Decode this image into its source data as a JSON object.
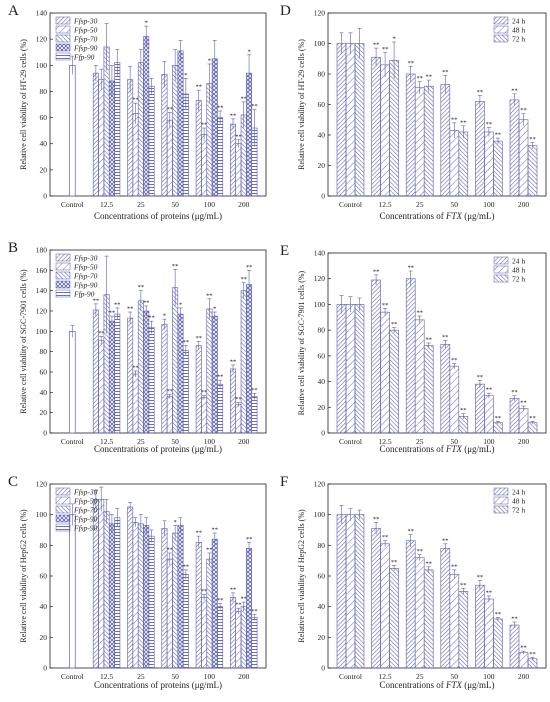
{
  "patterns": [
    "hatch-dense",
    "hatch-sparse",
    "hatch-back",
    "cross",
    "horiz"
  ],
  "colors": {
    "stroke": "#5b5fb0",
    "axis": "#222222",
    "text": "#222222"
  },
  "chart_data": [
    {
      "panel_label": "A",
      "type": "bar",
      "ylabel": "Relative cell viability of HT-29 cells (%)",
      "xlabel": "Concentrations of proteins (μg/mL)",
      "ylim": [
        0,
        140
      ],
      "yticks": [
        0,
        20,
        40,
        60,
        80,
        100,
        120,
        140
      ],
      "control": {
        "label": "Control",
        "value": 100,
        "err": 7
      },
      "categories": [
        "12.5",
        "25",
        "50",
        "100",
        "200"
      ],
      "legend_position": "top-left",
      "series": [
        {
          "name": "Ffsp-30",
          "values": [
            94,
            89,
            93,
            73,
            55
          ],
          "errors": [
            6,
            10,
            10,
            8,
            4
          ],
          "sig": [
            "",
            "",
            "",
            "**",
            "**"
          ]
        },
        {
          "name": "Ffsp-50",
          "values": [
            89,
            63,
            58,
            47,
            40
          ],
          "errors": [
            8,
            8,
            6,
            5,
            3
          ],
          "sig": [
            "",
            "**",
            "**",
            "**",
            "**"
          ]
        },
        {
          "name": "Ffsp-70",
          "values": [
            114,
            102,
            100,
            86,
            62
          ],
          "errors": [
            18,
            10,
            12,
            15,
            10
          ],
          "sig": [
            "",
            "",
            "",
            "*",
            "**"
          ]
        },
        {
          "name": "Ffsp-90",
          "values": [
            88,
            122,
            111,
            105,
            94
          ],
          "errors": [
            12,
            8,
            8,
            14,
            14
          ],
          "sig": [
            "",
            "*",
            "",
            "",
            "*"
          ]
        },
        {
          "name": "Ffp-90",
          "values": [
            102,
            84,
            78,
            60,
            52
          ],
          "errors": [
            10,
            6,
            12,
            5,
            14
          ],
          "sig": [
            "",
            "",
            "*",
            "**",
            "**"
          ]
        }
      ]
    },
    {
      "panel_label": "D",
      "type": "bar",
      "ylabel": "Relative cell viability of HT-29 cells (%)",
      "xlabel_parts": [
        "Concentrations of ",
        "FTX",
        " (μg/mL)"
      ],
      "ylim": [
        0,
        120
      ],
      "yticks": [
        0,
        20,
        40,
        60,
        80,
        100,
        120
      ],
      "control": {
        "label": "Control",
        "values": [
          100,
          100,
          100
        ],
        "errors": [
          7,
          7,
          10
        ]
      },
      "categories": [
        "12.5",
        "25",
        "50",
        "100",
        "200"
      ],
      "legend_position": "top-right",
      "series": [
        {
          "name": "24 h",
          "values": [
            91,
            80,
            73,
            62,
            63
          ],
          "errors": [
            6,
            5,
            6,
            4,
            4
          ],
          "sig": [
            "**",
            "**",
            "**",
            "**",
            "**"
          ]
        },
        {
          "name": "48 h",
          "values": [
            86,
            71,
            43,
            42,
            50
          ],
          "errors": [
            8,
            4,
            5,
            3,
            4
          ],
          "sig": [
            "**",
            "**",
            "**",
            "**",
            "**"
          ]
        },
        {
          "name": "72 h",
          "values": [
            89,
            72,
            42,
            36,
            33
          ],
          "errors": [
            12,
            4,
            4,
            2,
            2
          ],
          "sig": [
            "*",
            "**",
            "**",
            "**",
            "**"
          ]
        }
      ]
    },
    {
      "panel_label": "B",
      "type": "bar",
      "ylabel": "Relative cell viability of SGC-7901 cells (%)",
      "xlabel": "Concentrations of proteins (μg/mL)",
      "ylim": [
        0,
        180
      ],
      "yticks": [
        0,
        20,
        40,
        60,
        80,
        100,
        120,
        140,
        160,
        180
      ],
      "control": {
        "label": "Control",
        "value": 100,
        "err": 6
      },
      "categories": [
        "12.5",
        "25",
        "50",
        "100",
        "200"
      ],
      "legend_position": "top-left",
      "series": [
        {
          "name": "Ffsp-30",
          "values": [
            121,
            113,
            107,
            86,
            63
          ],
          "errors": [
            6,
            6,
            5,
            4,
            4
          ],
          "sig": [
            "**",
            "**",
            "*",
            "**",
            "**"
          ]
        },
        {
          "name": "Ffsp-50",
          "values": [
            91,
            58,
            36,
            35,
            28
          ],
          "errors": [
            4,
            3,
            2,
            2,
            2
          ],
          "sig": [
            "**",
            "**",
            "**",
            "**",
            "**"
          ]
        },
        {
          "name": "Ffsp-70",
          "values": [
            136,
            130,
            143,
            122,
            140
          ],
          "errors": [
            38,
            10,
            18,
            10,
            8
          ],
          "sig": [
            "",
            "**",
            "**",
            "**",
            "**"
          ]
        },
        {
          "name": "Ffsp-90",
          "values": [
            110,
            120,
            117,
            115,
            146
          ],
          "errors": [
            5,
            5,
            6,
            4,
            14
          ],
          "sig": [
            "**",
            "**",
            "*",
            "*",
            "**"
          ]
        },
        {
          "name": "Ffp-90",
          "values": [
            117,
            104,
            81,
            48,
            36
          ],
          "errors": [
            6,
            6,
            5,
            4,
            3
          ],
          "sig": [
            "**",
            "**",
            "**",
            "**",
            "**"
          ]
        }
      ]
    },
    {
      "panel_label": "E",
      "type": "bar",
      "ylabel": "Relative cell viability of SGC-7901 cells (%)",
      "xlabel_parts": [
        "Concentrations of ",
        "FTX",
        " (μg/mL)"
      ],
      "ylim": [
        0,
        140
      ],
      "yticks": [
        0,
        20,
        40,
        60,
        80,
        100,
        120,
        140
      ],
      "control": {
        "label": "Control",
        "values": [
          100,
          100,
          100
        ],
        "errors": [
          7,
          6,
          5
        ]
      },
      "categories": [
        "12.5",
        "25",
        "50",
        "100",
        "200"
      ],
      "legend_position": "top-right",
      "series": [
        {
          "name": "24 h",
          "values": [
            119,
            120,
            69,
            38,
            27
          ],
          "errors": [
            4,
            6,
            3,
            3,
            2
          ],
          "sig": [
            "**",
            "**",
            "**",
            "**",
            "**"
          ]
        },
        {
          "name": "48 h",
          "values": [
            94,
            88,
            52,
            29,
            19
          ],
          "errors": [
            3,
            3,
            2,
            2,
            2
          ],
          "sig": [
            "**",
            "**",
            "**",
            "**",
            "**"
          ]
        },
        {
          "name": "72 h",
          "values": [
            80,
            68,
            13,
            8,
            8
          ],
          "errors": [
            2,
            2,
            2,
            1,
            1
          ],
          "sig": [
            "**",
            "**",
            "**",
            "**",
            "**"
          ]
        }
      ]
    },
    {
      "panel_label": "C",
      "type": "bar",
      "ylabel": "Relative cell viability of HepG2 cells (%)",
      "xlabel": "Concentrations of proteins (μg/mL)",
      "ylim": [
        0,
        120
      ],
      "yticks": [
        0,
        20,
        40,
        60,
        80,
        100,
        120
      ],
      "control": {
        "label": "Control",
        "value": 100,
        "err": 7
      },
      "categories": [
        "12.5",
        "25",
        "50",
        "100",
        "200"
      ],
      "legend_position": "top-left",
      "series": [
        {
          "name": "Ffsp-30",
          "values": [
            110,
            105,
            91,
            82,
            46
          ],
          "errors": [
            6,
            3,
            5,
            4,
            3
          ],
          "sig": [
            "",
            "",
            "",
            "**",
            "**"
          ]
        },
        {
          "name": "Ffsp-50",
          "values": [
            110,
            95,
            71,
            46,
            37
          ],
          "errors": [
            8,
            3,
            4,
            2,
            2
          ],
          "sig": [
            "",
            "",
            "**",
            "**",
            "**"
          ]
        },
        {
          "name": "Ffsp-70",
          "values": [
            102,
            94,
            88,
            71,
            40
          ],
          "errors": [
            8,
            6,
            5,
            4,
            3
          ],
          "sig": [
            "",
            "",
            "*",
            "**",
            "**"
          ]
        },
        {
          "name": "Ffsp-90",
          "values": [
            94,
            93,
            93,
            84,
            78
          ],
          "errors": [
            6,
            5,
            5,
            4,
            4
          ],
          "sig": [
            "",
            "",
            "",
            "**",
            "**"
          ]
        },
        {
          "name": "Ffsp-90",
          "values": [
            98,
            86,
            61,
            40,
            33
          ],
          "errors": [
            6,
            4,
            3,
            2,
            2
          ],
          "sig": [
            "",
            "",
            "**",
            "**",
            "**"
          ]
        }
      ]
    },
    {
      "panel_label": "F",
      "type": "bar",
      "ylabel": "Relative cell viability of HepG2 cells (%)",
      "xlabel_parts": [
        "Concentrations of ",
        "FTX",
        " (μg/mL)"
      ],
      "ylim": [
        0,
        120
      ],
      "yticks": [
        0,
        20,
        40,
        60,
        80,
        100,
        120
      ],
      "control": {
        "label": "Control",
        "values": [
          100,
          100,
          100
        ],
        "errors": [
          6,
          4,
          3
        ]
      },
      "categories": [
        "12.5",
        "25",
        "50",
        "100",
        "200"
      ],
      "legend_position": "top-right",
      "series": [
        {
          "name": "24 h",
          "values": [
            91,
            83,
            78,
            54,
            28
          ],
          "errors": [
            4,
            4,
            3,
            3,
            2
          ],
          "sig": [
            "**",
            "**",
            "**",
            "**",
            "**"
          ]
        },
        {
          "name": "48 h",
          "values": [
            81,
            72,
            61,
            45,
            10
          ],
          "errors": [
            2,
            2,
            3,
            2,
            1
          ],
          "sig": [
            "**",
            "**",
            "**",
            "**",
            "**"
          ]
        },
        {
          "name": "72 h",
          "values": [
            65,
            64,
            50,
            32,
            6
          ],
          "errors": [
            2,
            2,
            2,
            1,
            1
          ],
          "sig": [
            "**",
            "**",
            "**",
            "**",
            "**"
          ]
        }
      ]
    }
  ]
}
